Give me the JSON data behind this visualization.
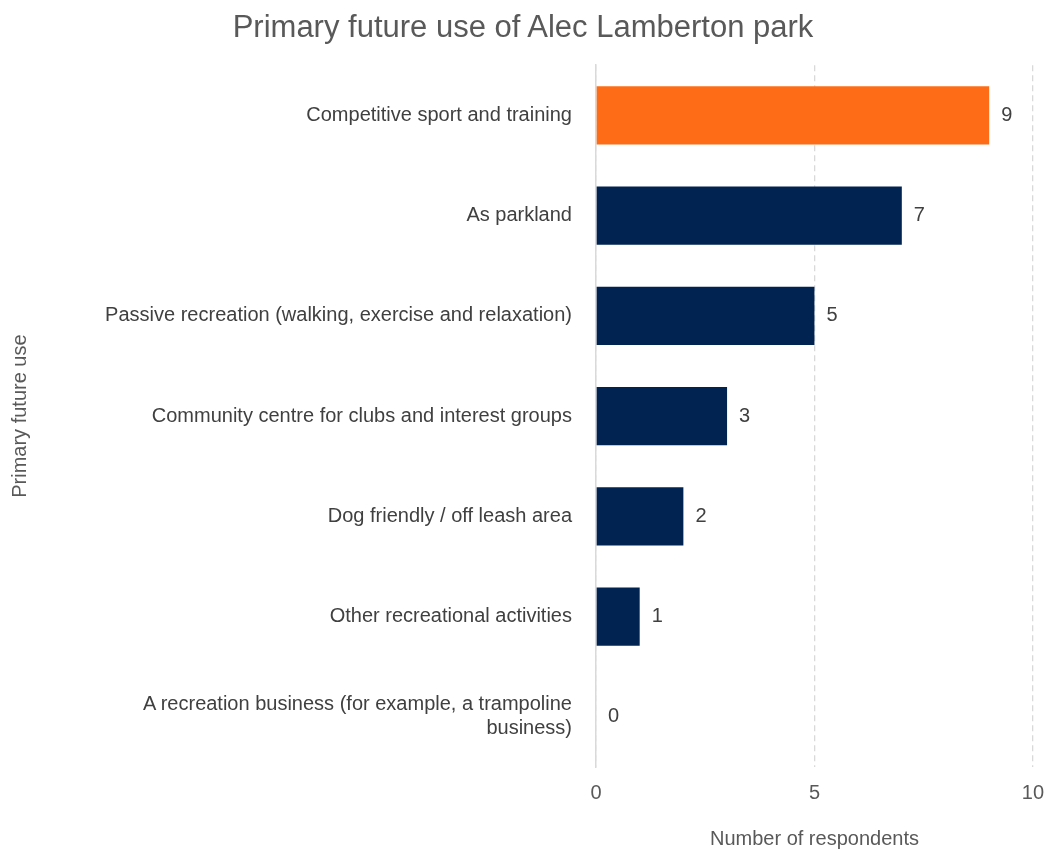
{
  "chart_data": {
    "type": "bar",
    "orientation": "horizontal",
    "title": "Primary future use of Alec Lamberton park",
    "xlabel": "Number of respondents",
    "ylabel": "Primary future use",
    "categories": [
      "Competitive sport and training",
      "As parkland",
      "Passive recreation (walking, exercise and relaxation)",
      "Community centre for clubs and interest groups",
      "Dog friendly / off leash area",
      "Other recreational activities",
      "A recreation business (for example, a trampoline business)"
    ],
    "values": [
      9,
      7,
      5,
      3,
      2,
      1,
      0
    ],
    "colors": [
      "#ff6c17",
      "#002351",
      "#002351",
      "#002351",
      "#002351",
      "#002351",
      "#002351"
    ],
    "xlim": [
      0,
      10
    ],
    "xticks": [
      0,
      5,
      10
    ],
    "grid": "x",
    "line_style": "dashed",
    "data_labels": true,
    "legend": false
  }
}
